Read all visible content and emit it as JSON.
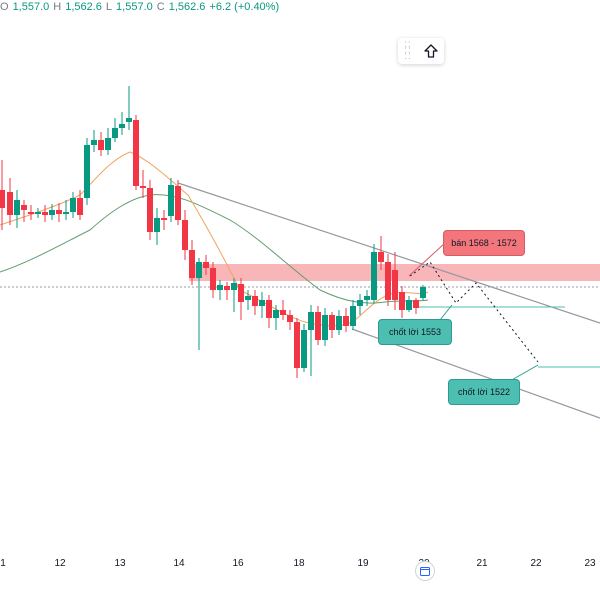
{
  "ohlc": {
    "open_label": "O",
    "open": "1,557.0",
    "high_label": "H",
    "high": "1,562.6",
    "low_label": "L",
    "low": "1,557.0",
    "close_label": "C",
    "close": "1,562.6",
    "change": "+6.2 (+0.40%)"
  },
  "toolbar": {
    "icons": [
      "drag-handle-icon",
      "arrow-up-icon"
    ]
  },
  "annotations": {
    "sell": "bán 1568 - 1572",
    "tp1": "chốt lời 1553",
    "tp2": "chốt lời 1522"
  },
  "x_axis": {
    "labels": [
      "1",
      "12",
      "13",
      "14",
      "16",
      "18",
      "19",
      "20",
      "21",
      "22",
      "23"
    ]
  },
  "colors": {
    "up": "#089981",
    "down": "#f23645",
    "ma_fast": "#f0a35e",
    "ma_slow": "#5f9e6e",
    "sell_zone": "#f7a9ab",
    "channel": "#9598a1",
    "tp_line": "#4dbfb2"
  },
  "chart_data": {
    "type": "candlestick",
    "symbol_price_readout": "C1,562.6",
    "candles_count": 62,
    "sell_zone_label": "bán 1568 - 1572",
    "take_profit_levels": [
      "chốt lời 1553",
      "chốt lời 1522"
    ],
    "x_tick_labels": [
      "1",
      "12",
      "13",
      "14",
      "16",
      "18",
      "19",
      "20",
      "21",
      "22",
      "23"
    ]
  }
}
